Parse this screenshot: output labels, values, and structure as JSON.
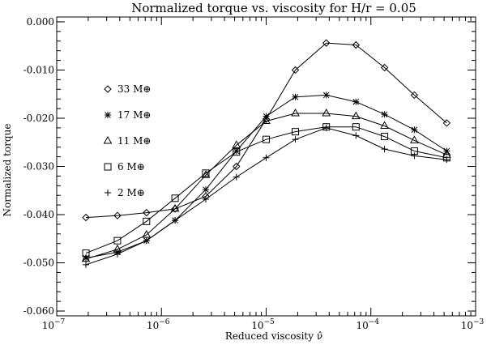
{
  "chart_data": {
    "type": "line",
    "title": "Normalized torque vs. viscosity for H/r = 0.05",
    "xlabel": "Reduced viscosity ν̂",
    "ylabel": "Normalized torque",
    "xscale": "log",
    "xlim": [
      1e-07,
      0.001
    ],
    "ylim": [
      -0.061,
      0.001
    ],
    "x_ticks": [
      {
        "value": 1e-07,
        "mant": "10",
        "exp": "−7"
      },
      {
        "value": 1e-06,
        "mant": "10",
        "exp": "−6"
      },
      {
        "value": 1e-05,
        "mant": "10",
        "exp": "−5"
      },
      {
        "value": 0.0001,
        "mant": "10",
        "exp": "−4"
      },
      {
        "value": 0.001,
        "mant": "10",
        "exp": "−3"
      }
    ],
    "y_ticks": [
      {
        "value": 0.0,
        "label": "0.000"
      },
      {
        "value": -0.01,
        "label": "-0.010"
      },
      {
        "value": -0.02,
        "label": "-0.020"
      },
      {
        "value": -0.03,
        "label": "-0.030"
      },
      {
        "value": -0.04,
        "label": "-0.040"
      },
      {
        "value": -0.05,
        "label": "-0.050"
      },
      {
        "value": -0.06,
        "label": "-0.060"
      }
    ],
    "grid": false,
    "legend_position": "left, inside",
    "x": [
      1.9e-07,
      3.8e-07,
      7.2e-07,
      1.35e-06,
      2.65e-06,
      5.2e-06,
      1e-05,
      1.9e-05,
      3.75e-05,
      7.2e-05,
      0.000135,
      0.00026,
      0.00053
    ],
    "series": [
      {
        "name": "33 M⊕",
        "marker": "diamond",
        "values": [
          -0.0406,
          -0.0402,
          -0.0396,
          -0.0388,
          -0.0362,
          -0.03,
          -0.0202,
          -0.01,
          -0.0044,
          -0.0048,
          -0.0095,
          -0.0152,
          -0.021
        ]
      },
      {
        "name": "17 M⊕",
        "marker": "asterisk",
        "values": [
          -0.049,
          -0.0478,
          -0.0454,
          -0.0412,
          -0.0348,
          -0.0268,
          -0.0196,
          -0.0156,
          -0.0152,
          -0.0166,
          -0.0192,
          -0.0224,
          -0.0268
        ]
      },
      {
        "name": "11 M⊕",
        "marker": "triangle",
        "values": [
          -0.0492,
          -0.0472,
          -0.0442,
          -0.0388,
          -0.0318,
          -0.0256,
          -0.0206,
          -0.019,
          -0.019,
          -0.0196,
          -0.0216,
          -0.0246,
          -0.0276
        ]
      },
      {
        "name": "6 M⊕",
        "marker": "square",
        "values": [
          -0.048,
          -0.0454,
          -0.0414,
          -0.0366,
          -0.0314,
          -0.027,
          -0.0244,
          -0.0228,
          -0.0218,
          -0.0218,
          -0.0238,
          -0.0268,
          -0.0282
        ]
      },
      {
        "name": "2 M⊕",
        "marker": "plus",
        "values": [
          -0.0504,
          -0.0482,
          -0.0454,
          -0.0412,
          -0.0368,
          -0.0322,
          -0.0282,
          -0.0244,
          -0.022,
          -0.0236,
          -0.0264,
          -0.0278,
          -0.0286
        ]
      }
    ]
  }
}
